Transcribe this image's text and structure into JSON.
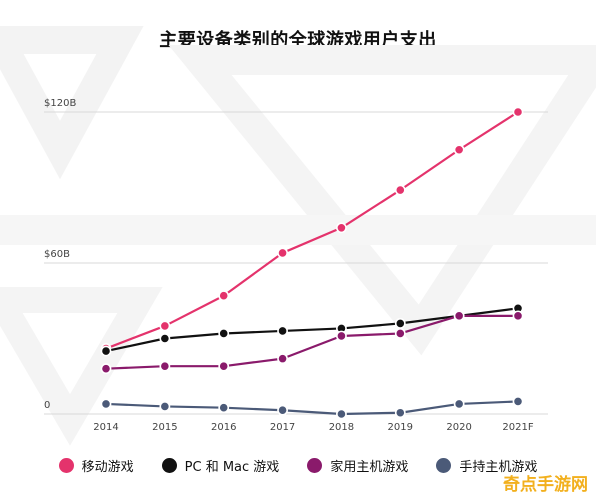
{
  "chart_data": {
    "type": "line",
    "title": "主要设备类别的全球游戏用户支出",
    "xlabel": "",
    "ylabel": "",
    "categories": [
      "2014",
      "2015",
      "2016",
      "2017",
      "2018",
      "2019",
      "2020",
      "2021F"
    ],
    "ylim": [
      0,
      120
    ],
    "yticks": [
      {
        "value": 0,
        "label": "0"
      },
      {
        "value": 60,
        "label": "$60B"
      },
      {
        "value": 120,
        "label": "$120B"
      }
    ],
    "grid": true,
    "legend_position": "bottom",
    "series": [
      {
        "name": "移动游戏",
        "color": "#e4336c",
        "values": [
          26,
          35,
          47,
          64,
          74,
          89,
          105,
          120
        ]
      },
      {
        "name": "PC 和 Mac 游戏",
        "color": "#111111",
        "values": [
          25,
          30,
          32,
          33,
          34,
          36,
          39,
          42
        ]
      },
      {
        "name": "家用主机游戏",
        "color": "#8a1a6b",
        "values": [
          18,
          19,
          19,
          22,
          31,
          32,
          39,
          39
        ]
      },
      {
        "name": "手持主机游戏",
        "color": "#4b5a78",
        "values": [
          4,
          3,
          2.5,
          1.5,
          0,
          0.5,
          4,
          5
        ]
      }
    ]
  },
  "watermark": "奇点手游网"
}
